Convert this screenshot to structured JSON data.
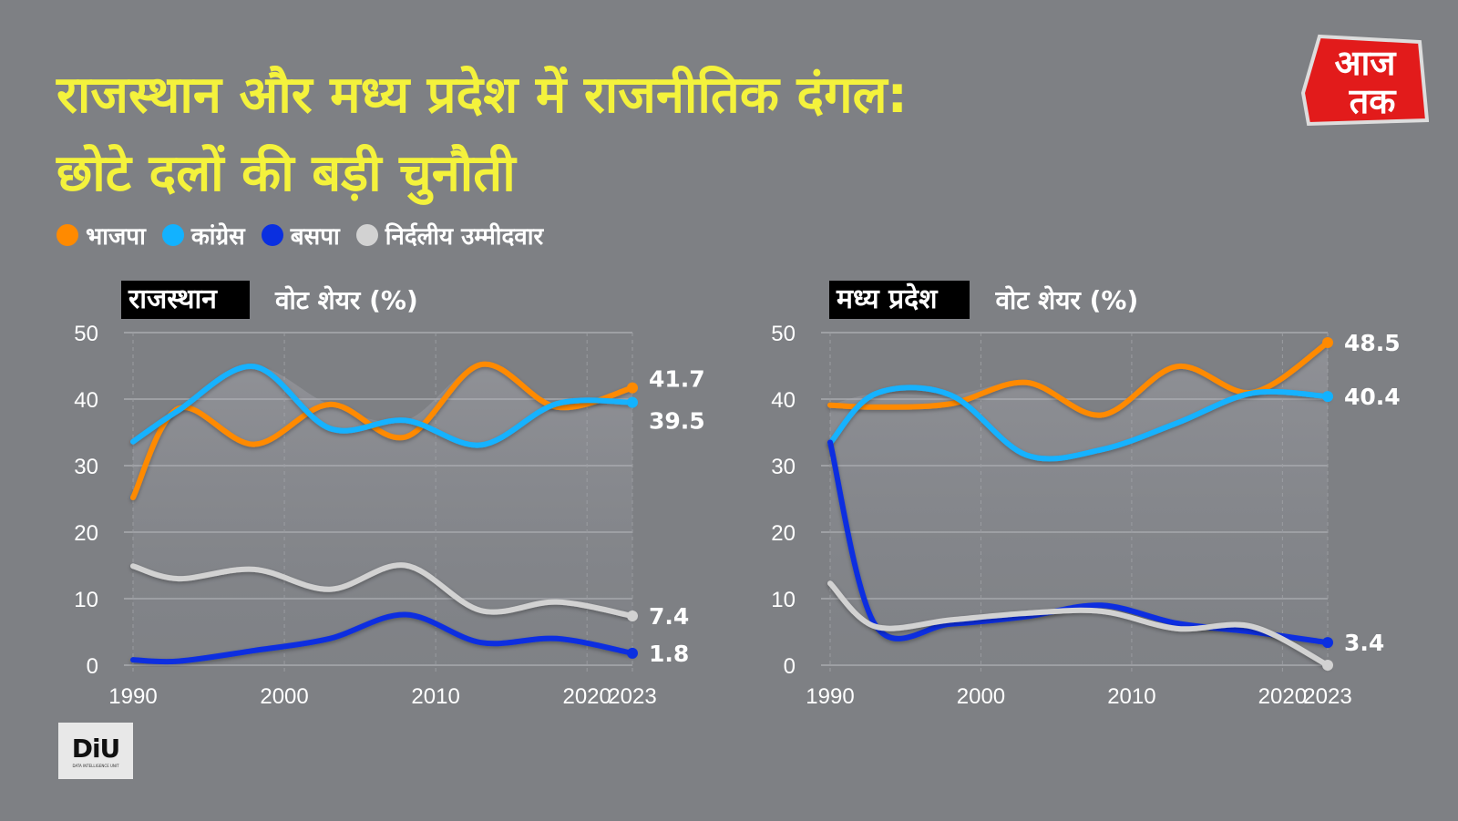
{
  "title_line1": "राजस्थान और मध्य प्रदेश में राजनीतिक दंगल:",
  "title_line2": "छोटे दलों की बड़ी चुनौती",
  "logo": {
    "text": "आज तक"
  },
  "footer_logo": {
    "text": "DIU",
    "subtitle": "DATA INTELLIGENCE UNIT"
  },
  "legend": [
    {
      "name": "भाजपा",
      "color": "#ff8a00"
    },
    {
      "name": "कांग्रेस",
      "color": "#12b2ff"
    },
    {
      "name": "बसपा",
      "color": "#0a2fe0"
    },
    {
      "name": "निर्दलीय उम्मीदवार",
      "color": "#d2d2d2"
    }
  ],
  "chart_data": [
    {
      "type": "line",
      "title": "राजस्थान",
      "ylabel": "वोट शेयर (%)",
      "ylim": [
        0,
        50
      ],
      "yticks": [
        0,
        10,
        20,
        30,
        40,
        50
      ],
      "xticks": [
        1990,
        2000,
        2010,
        2020,
        2023
      ],
      "grid": true,
      "x": [
        1990,
        1993,
        1998,
        2003,
        2008,
        2013,
        2018,
        2023
      ],
      "series": [
        {
          "name": "भाजपा",
          "color": "#ff8a00",
          "values": [
            25.2,
            38.6,
            33.2,
            39.2,
            34.3,
            45.2,
            38.8,
            41.7
          ],
          "end_label": "41.7"
        },
        {
          "name": "कांग्रेस",
          "color": "#12b2ff",
          "values": [
            33.6,
            38.3,
            44.9,
            35.6,
            36.8,
            33.1,
            39.3,
            39.5
          ],
          "end_label": "39.5"
        },
        {
          "name": "बसपा",
          "color": "#0a2fe0",
          "values": [
            0.8,
            0.6,
            2.2,
            4.0,
            7.6,
            3.4,
            4.0,
            1.8
          ],
          "end_label": "1.8"
        },
        {
          "name": "निर्दलीय उम्मीदवार",
          "color": "#d2d2d2",
          "values": [
            14.9,
            13.0,
            14.4,
            11.4,
            15.0,
            8.2,
            9.5,
            7.4
          ],
          "end_label": "7.4"
        }
      ]
    },
    {
      "type": "line",
      "title": "मध्य प्रदेश",
      "ylabel": "वोट शेयर (%)",
      "ylim": [
        0,
        50
      ],
      "yticks": [
        0,
        10,
        20,
        30,
        40,
        50
      ],
      "xticks": [
        1990,
        2000,
        2010,
        2020,
        2023
      ],
      "grid": true,
      "x": [
        1990,
        1993,
        1998,
        2003,
        2008,
        2013,
        2018,
        2023
      ],
      "series": [
        {
          "name": "भाजपा",
          "color": "#ff8a00",
          "values": [
            39.1,
            38.8,
            39.3,
            42.5,
            37.6,
            44.9,
            41.0,
            48.5
          ],
          "end_label": "48.5"
        },
        {
          "name": "कांग्रेस",
          "color": "#12b2ff",
          "values": [
            33.4,
            40.8,
            40.6,
            31.6,
            32.4,
            36.4,
            40.9,
            40.4
          ],
          "end_label": "40.4"
        },
        {
          "name": "बसपा",
          "color": "#0a2fe0",
          "values": [
            33.5,
            6.0,
            6.2,
            7.3,
            9.0,
            6.3,
            5.0,
            3.4
          ],
          "end_label": "3.4"
        },
        {
          "name": "निर्दलीय उम्मीदवार",
          "color": "#d2d2d2",
          "values": [
            12.3,
            5.8,
            6.8,
            7.8,
            8.1,
            5.5,
            5.8,
            0.0
          ],
          "end_label": ""
        }
      ]
    }
  ]
}
